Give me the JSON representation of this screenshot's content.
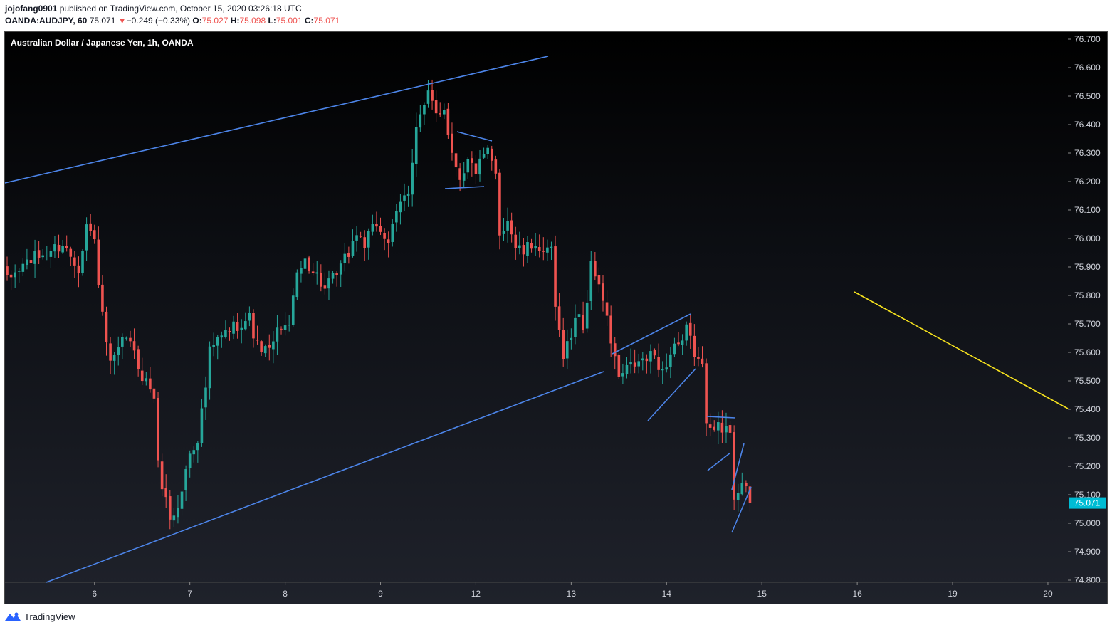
{
  "header": {
    "author": "jojofang0901",
    "published_text": " published on TradingView.com, October 15, 2020 03:26:18 UTC",
    "symbol": "OANDA:AUDJPY, 60",
    "last": "75.071",
    "arrow": "▼",
    "change": "−0.249 (−0.33%)",
    "o_label": "O:",
    "o_val": "75.027",
    "h_label": "H:",
    "h_val": "75.098",
    "l_label": "L:",
    "l_val": "75.001",
    "c_label": "C:",
    "c_val": "75.071"
  },
  "legend_title": "Australian Dollar / Japanese Yen, 1h, OANDA",
  "footer": {
    "brand": "TradingView",
    "logo_icon": "tradingview-logo-icon"
  },
  "colors": {
    "up": "#26a69a",
    "down": "#ef5350",
    "trendline": "#4c84e8",
    "projection": "#f5e11e",
    "price_tag": "#00bcd4"
  },
  "chart_data": {
    "type": "candlestick",
    "title": "Australian Dollar / Japanese Yen, 1h, OANDA",
    "ylim": [
      74.8,
      76.72
    ],
    "y_ticks": [
      "74.800",
      "74.900",
      "75.000",
      "75.100",
      "75.200",
      "75.300",
      "75.400",
      "75.500",
      "75.600",
      "75.700",
      "75.800",
      "75.900",
      "76.000",
      "76.100",
      "76.200",
      "76.300",
      "76.400",
      "76.500",
      "76.600",
      "76.700"
    ],
    "x_ticks": [
      {
        "label": "6",
        "i": 22
      },
      {
        "label": "7",
        "i": 46
      },
      {
        "label": "8",
        "i": 70
      },
      {
        "label": "9",
        "i": 94
      },
      {
        "label": "12",
        "i": 118
      },
      {
        "label": "13",
        "i": 142
      },
      {
        "label": "14",
        "i": 166
      },
      {
        "label": "15",
        "i": 190
      },
      {
        "label": "16",
        "i": 214
      },
      {
        "label": "19",
        "i": 238
      },
      {
        "label": "20",
        "i": 262
      }
    ],
    "current_price": "75.071",
    "current_value": 75.071,
    "close_path": [
      [
        0,
        75.85
      ],
      [
        5,
        75.92
      ],
      [
        10,
        75.95
      ],
      [
        14,
        75.98
      ],
      [
        18,
        75.9
      ],
      [
        20,
        76.05
      ],
      [
        22,
        75.99
      ],
      [
        24,
        75.72
      ],
      [
        26,
        75.55
      ],
      [
        28,
        75.6
      ],
      [
        30,
        75.66
      ],
      [
        34,
        75.52
      ],
      [
        37,
        75.45
      ],
      [
        38,
        75.2
      ],
      [
        41,
        75.02
      ],
      [
        43,
        75.05
      ],
      [
        46,
        75.25
      ],
      [
        48,
        75.3
      ],
      [
        50,
        75.48
      ],
      [
        51,
        75.6
      ],
      [
        53,
        75.64
      ],
      [
        56,
        75.68
      ],
      [
        58,
        75.7
      ],
      [
        61,
        75.72
      ],
      [
        63,
        75.62
      ],
      [
        66,
        75.6
      ],
      [
        69,
        75.7
      ],
      [
        71,
        75.68
      ],
      [
        72,
        75.82
      ],
      [
        75,
        75.93
      ],
      [
        78,
        75.87
      ],
      [
        80,
        75.82
      ],
      [
        83,
        75.87
      ],
      [
        86,
        75.95
      ],
      [
        88,
        76.02
      ],
      [
        90,
        75.98
      ],
      [
        93,
        76.05
      ],
      [
        96,
        75.99
      ],
      [
        99,
        76.12
      ],
      [
        101,
        76.17
      ],
      [
        103,
        76.4
      ],
      [
        105,
        76.46
      ],
      [
        106,
        76.5
      ],
      [
        108,
        76.44
      ],
      [
        110,
        76.46
      ],
      [
        112,
        76.3
      ],
      [
        114,
        76.22
      ],
      [
        116,
        76.27
      ],
      [
        118,
        76.24
      ],
      [
        121,
        76.3
      ],
      [
        123,
        76.22
      ],
      [
        124,
        76.02
      ],
      [
        126,
        76.07
      ],
      [
        128,
        75.97
      ],
      [
        130,
        75.95
      ],
      [
        133,
        75.99
      ],
      [
        135,
        75.93
      ],
      [
        137,
        75.97
      ],
      [
        138,
        75.74
      ],
      [
        140,
        75.6
      ],
      [
        142,
        75.66
      ],
      [
        144,
        75.75
      ],
      [
        145,
        75.68
      ],
      [
        147,
        75.9
      ],
      [
        149,
        75.85
      ],
      [
        151,
        75.71
      ],
      [
        152,
        75.64
      ],
      [
        154,
        75.51
      ],
      [
        157,
        75.55
      ],
      [
        160,
        75.57
      ],
      [
        163,
        75.59
      ],
      [
        165,
        75.53
      ],
      [
        168,
        75.63
      ],
      [
        170,
        75.62
      ],
      [
        171,
        75.68
      ],
      [
        173,
        75.6
      ],
      [
        175,
        75.54
      ],
      [
        176,
        75.37
      ],
      [
        178,
        75.35
      ],
      [
        180,
        75.32
      ],
      [
        182,
        75.33
      ],
      [
        183,
        75.1
      ],
      [
        185,
        75.14
      ],
      [
        187,
        75.07
      ]
    ]
  }
}
